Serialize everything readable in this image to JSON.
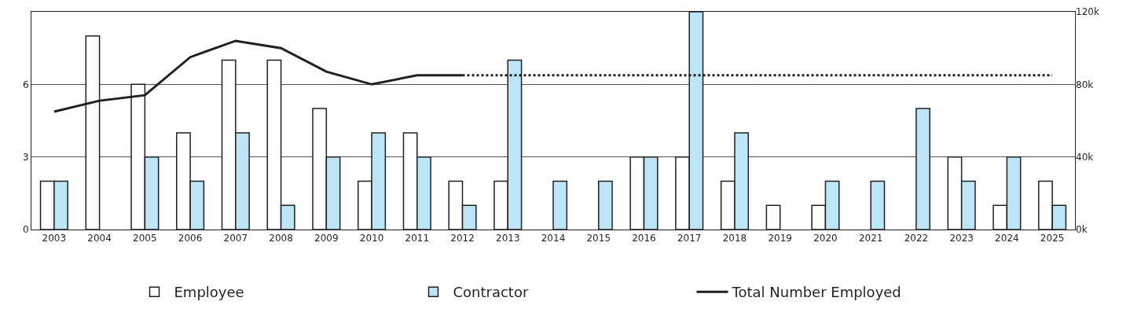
{
  "chart_data": {
    "type": "bar",
    "categories": [
      "2003",
      "2004",
      "2005",
      "2006",
      "2007",
      "2008",
      "2009",
      "2010",
      "2011",
      "2012",
      "2013",
      "2014",
      "2015",
      "2016",
      "2017",
      "2018",
      "2019",
      "2020",
      "2021",
      "2022",
      "2023",
      "2024",
      "2025"
    ],
    "series": [
      {
        "name": "Employee",
        "color": "#ffffff",
        "values": [
          2,
          8,
          6,
          4,
          7,
          7,
          5,
          2,
          4,
          2,
          2,
          null,
          null,
          3,
          3,
          2,
          1,
          1,
          null,
          null,
          3,
          1,
          2
        ]
      },
      {
        "name": "Contractor",
        "color": "#bde5f8",
        "values": [
          2,
          null,
          3,
          2,
          4,
          1,
          3,
          4,
          3,
          1,
          7,
          2,
          2,
          3,
          9,
          4,
          null,
          2,
          2,
          5,
          2,
          3,
          1
        ]
      },
      {
        "name": "Total Number Employed",
        "type": "line",
        "axis": "y2",
        "color": "#231f20",
        "line_style": "solid",
        "values": [
          65000,
          71000,
          74000,
          95000,
          104000,
          100000,
          87000,
          80000,
          85000,
          85000,
          null,
          null,
          null,
          null,
          null,
          null,
          null,
          null,
          null,
          null,
          null,
          null,
          null
        ]
      },
      {
        "type": "line",
        "axis": "y2",
        "color": "#231f20",
        "line_style": "dotted",
        "values": [
          null,
          null,
          null,
          null,
          null,
          null,
          null,
          null,
          null,
          85000,
          85000,
          85000,
          85000,
          85000,
          85000,
          85000,
          85000,
          85000,
          85000,
          85000,
          85000,
          85000,
          85000
        ]
      }
    ],
    "ylim": [
      0,
      9
    ],
    "yticks": [
      0,
      3,
      6
    ],
    "y2lim": [
      0,
      120000
    ],
    "y2ticks": [
      {
        "value": 0,
        "label": "0k"
      },
      {
        "value": 40000,
        "label": "40k"
      },
      {
        "value": 80000,
        "label": "80k"
      },
      {
        "value": 120000,
        "label": "120k"
      }
    ],
    "grid": "y",
    "legend": "bottom"
  }
}
